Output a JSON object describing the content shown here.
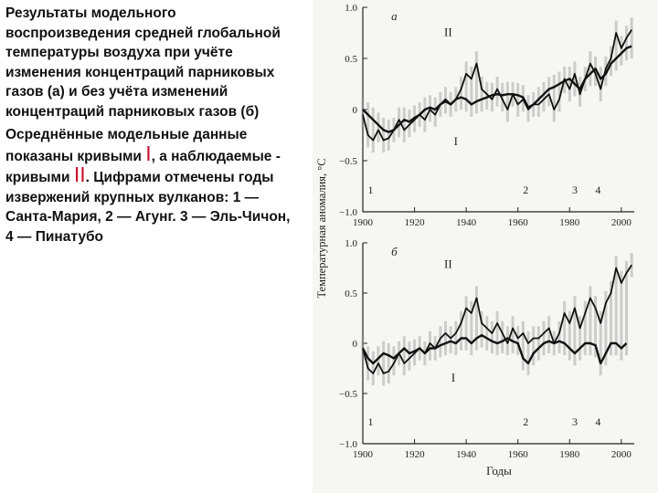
{
  "description": {
    "p1": "Результаты модельного воспроизведения средней глобальной температуры воздуха при учёте изменения концентраций парниковых газов (а) и без учёта изменений концентраций парниковых газов (б)",
    "p2_a": "Осреднённые модельные данные показаны кривыми ",
    "p2_roman1": "I",
    "p2_b": ", а наблюдаемые - кривыми ",
    "p2_roman2": "II",
    "p2_c": ". Цифрами отмечены годы извержений крупных вулканов: 1 — Санта-Мария, 2 — Агунг. 3 — Эль-Чичон, 4 — Пинатубо"
  },
  "colors": {
    "accent": "#c8102e",
    "curve": "#111111",
    "band": "#9a9a9a",
    "background": "#f6f6f3"
  },
  "chart_data": [
    {
      "type": "line",
      "title": "а",
      "ylabel": "Температурная аномалия, °С",
      "xlabel": "",
      "xlim": [
        1900,
        2005
      ],
      "ylim": [
        -1.0,
        1.0
      ],
      "xticks": [
        1900,
        1920,
        1940,
        1960,
        1980,
        2000
      ],
      "yticks": [
        {
          "value": 1.0,
          "label": "1.0"
        },
        {
          "value": 0.5,
          "label": "0.5"
        },
        {
          "value": 0,
          "label": "0"
        },
        {
          "value": -0.5,
          "label": "−0.5"
        },
        {
          "value": -1.0,
          "label": "−1.0"
        }
      ],
      "series": [
        {
          "name": "I",
          "x": [
            1900,
            1902,
            1904,
            1906,
            1908,
            1910,
            1912,
            1914,
            1916,
            1918,
            1920,
            1922,
            1924,
            1926,
            1928,
            1930,
            1932,
            1934,
            1936,
            1938,
            1940,
            1942,
            1944,
            1946,
            1948,
            1950,
            1952,
            1954,
            1956,
            1958,
            1960,
            1962,
            1964,
            1966,
            1968,
            1970,
            1972,
            1974,
            1976,
            1978,
            1980,
            1982,
            1984,
            1986,
            1988,
            1990,
            1992,
            1994,
            1996,
            1998,
            2000,
            2002,
            2004
          ],
          "y": [
            0.0,
            -0.05,
            -0.1,
            -0.15,
            -0.2,
            -0.22,
            -0.2,
            -0.15,
            -0.1,
            -0.12,
            -0.08,
            -0.05,
            0.0,
            0.02,
            0.0,
            0.05,
            0.08,
            0.05,
            0.1,
            0.12,
            0.1,
            0.05,
            0.08,
            0.1,
            0.12,
            0.14,
            0.15,
            0.14,
            0.15,
            0.15,
            0.14,
            0.12,
            0.02,
            0.05,
            0.1,
            0.15,
            0.2,
            0.22,
            0.25,
            0.28,
            0.3,
            0.25,
            0.2,
            0.3,
            0.35,
            0.4,
            0.3,
            0.35,
            0.45,
            0.5,
            0.55,
            0.6,
            0.62
          ]
        },
        {
          "name": "II",
          "x": [
            1900,
            1902,
            1904,
            1906,
            1908,
            1910,
            1912,
            1914,
            1916,
            1918,
            1920,
            1922,
            1924,
            1926,
            1928,
            1930,
            1932,
            1934,
            1936,
            1938,
            1940,
            1942,
            1944,
            1946,
            1948,
            1950,
            1952,
            1954,
            1956,
            1958,
            1960,
            1962,
            1964,
            1966,
            1968,
            1970,
            1972,
            1974,
            1976,
            1978,
            1980,
            1982,
            1984,
            1986,
            1988,
            1990,
            1992,
            1994,
            1996,
            1998,
            2000,
            2002,
            2004
          ],
          "y": [
            -0.05,
            -0.25,
            -0.3,
            -0.2,
            -0.3,
            -0.28,
            -0.2,
            -0.1,
            -0.2,
            -0.15,
            -0.1,
            -0.05,
            -0.1,
            0.0,
            -0.05,
            0.05,
            0.1,
            0.05,
            0.1,
            0.2,
            0.35,
            0.3,
            0.45,
            0.2,
            0.15,
            0.1,
            0.2,
            0.1,
            0.0,
            0.15,
            0.05,
            0.1,
            0.0,
            0.05,
            0.05,
            0.1,
            0.15,
            0.0,
            0.1,
            0.3,
            0.2,
            0.35,
            0.15,
            0.3,
            0.45,
            0.35,
            0.2,
            0.4,
            0.5,
            0.75,
            0.6,
            0.7,
            0.78
          ]
        }
      ],
      "annotations": [
        {
          "text": "II",
          "x": 1933,
          "y": 0.72
        },
        {
          "text": "I",
          "x": 1936,
          "y": -0.35
        },
        {
          "text": "1",
          "x": 1903,
          "y": -0.82
        },
        {
          "text": "2",
          "x": 1963,
          "y": -0.82
        },
        {
          "text": "3",
          "x": 1982,
          "y": -0.82
        },
        {
          "text": "4",
          "x": 1991,
          "y": -0.82
        }
      ]
    },
    {
      "type": "line",
      "title": "б",
      "ylabel": "Температурная аномалия, °С",
      "xlabel": "Годы",
      "xlim": [
        1900,
        2005
      ],
      "ylim": [
        -1.0,
        1.0
      ],
      "xticks": [
        1900,
        1920,
        1940,
        1960,
        1980,
        2000
      ],
      "yticks": [
        {
          "value": 1.0,
          "label": "1.0"
        },
        {
          "value": 0.5,
          "label": "0.5"
        },
        {
          "value": 0,
          "label": "0"
        },
        {
          "value": -0.5,
          "label": "−0.5"
        },
        {
          "value": -1.0,
          "label": "−1.0"
        }
      ],
      "series": [
        {
          "name": "I",
          "x": [
            1900,
            1902,
            1904,
            1906,
            1908,
            1910,
            1912,
            1914,
            1916,
            1918,
            1920,
            1922,
            1924,
            1926,
            1928,
            1930,
            1932,
            1934,
            1936,
            1938,
            1940,
            1942,
            1944,
            1946,
            1948,
            1950,
            1952,
            1954,
            1956,
            1958,
            1960,
            1962,
            1964,
            1966,
            1968,
            1970,
            1972,
            1974,
            1976,
            1978,
            1980,
            1982,
            1984,
            1986,
            1988,
            1990,
            1992,
            1994,
            1996,
            1998,
            2000,
            2002
          ],
          "y": [
            -0.05,
            -0.15,
            -0.2,
            -0.15,
            -0.1,
            -0.12,
            -0.15,
            -0.1,
            -0.05,
            -0.1,
            -0.08,
            -0.05,
            -0.1,
            -0.05,
            -0.05,
            -0.02,
            0.0,
            0.02,
            0.0,
            0.05,
            0.05,
            0.0,
            0.05,
            0.08,
            0.05,
            0.02,
            0.0,
            0.02,
            0.05,
            0.02,
            0.0,
            -0.15,
            -0.2,
            -0.1,
            -0.05,
            0.0,
            0.02,
            0.0,
            0.02,
            0.0,
            -0.05,
            -0.1,
            -0.05,
            0.0,
            0.0,
            -0.02,
            -0.2,
            -0.1,
            0.0,
            0.0,
            -0.05,
            0.0
          ]
        },
        {
          "name": "II",
          "x": [
            1900,
            1902,
            1904,
            1906,
            1908,
            1910,
            1912,
            1914,
            1916,
            1918,
            1920,
            1922,
            1924,
            1926,
            1928,
            1930,
            1932,
            1934,
            1936,
            1938,
            1940,
            1942,
            1944,
            1946,
            1948,
            1950,
            1952,
            1954,
            1956,
            1958,
            1960,
            1962,
            1964,
            1966,
            1968,
            1970,
            1972,
            1974,
            1976,
            1978,
            1980,
            1982,
            1984,
            1986,
            1988,
            1990,
            1992,
            1994,
            1996,
            1998,
            2000,
            2002,
            2004
          ],
          "y": [
            -0.05,
            -0.25,
            -0.3,
            -0.2,
            -0.3,
            -0.28,
            -0.2,
            -0.1,
            -0.2,
            -0.15,
            -0.1,
            -0.05,
            -0.1,
            0.0,
            -0.05,
            0.05,
            0.1,
            0.05,
            0.1,
            0.2,
            0.35,
            0.3,
            0.45,
            0.2,
            0.15,
            0.1,
            0.2,
            0.1,
            0.0,
            0.15,
            0.05,
            0.1,
            0.0,
            0.05,
            0.05,
            0.1,
            0.15,
            0.0,
            0.1,
            0.3,
            0.2,
            0.35,
            0.15,
            0.3,
            0.45,
            0.35,
            0.2,
            0.4,
            0.5,
            0.75,
            0.6,
            0.7,
            0.78
          ]
        }
      ],
      "annotations": [
        {
          "text": "II",
          "x": 1933,
          "y": 0.75
        },
        {
          "text": "I",
          "x": 1935,
          "y": -0.38
        },
        {
          "text": "1",
          "x": 1903,
          "y": -0.82
        },
        {
          "text": "2",
          "x": 1963,
          "y": -0.82
        },
        {
          "text": "3",
          "x": 1982,
          "y": -0.82
        },
        {
          "text": "4",
          "x": 1991,
          "y": -0.82
        }
      ]
    }
  ]
}
